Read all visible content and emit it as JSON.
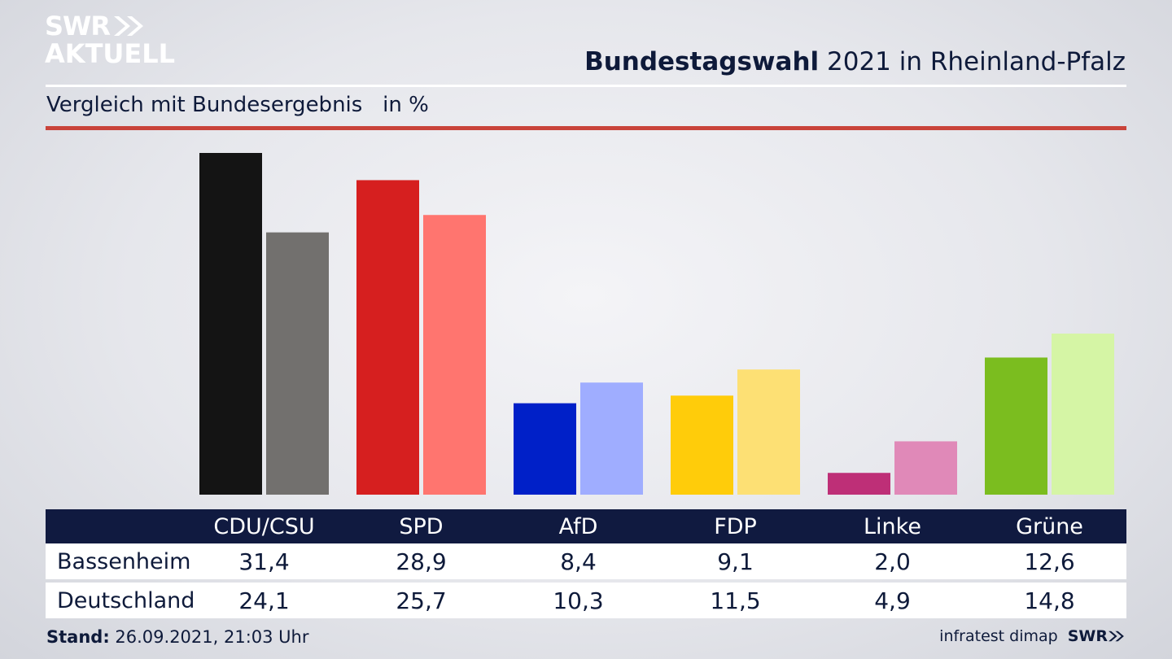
{
  "logo": {
    "line1": "SWR",
    "line2": "AKTUELL"
  },
  "header": {
    "title_bold": "Bundestagswahl",
    "title_rest": " 2021 in Rheinland-Pfalz"
  },
  "subtitle": "Vergleich mit Bundesergebnis   in %",
  "footer": {
    "stand_label": "Stand:",
    "stand_value": " 26.09.2021, 21:03 Uhr",
    "source": "infratest dimap",
    "brand": "SWR"
  },
  "colors": {
    "navy": "#101a40",
    "accent_red": "#c9433a"
  },
  "chart_data": {
    "type": "bar",
    "categories": [
      "CDU/CSU",
      "SPD",
      "AfD",
      "FDP",
      "Linke",
      "Grüne"
    ],
    "series": [
      {
        "name": "Bassenheim",
        "values": [
          31.4,
          28.9,
          8.4,
          9.1,
          2.0,
          12.6
        ],
        "colors": [
          "#141414",
          "#d61f1f",
          "#0020c8",
          "#ffcc0a",
          "#be2f77",
          "#7bbd1f"
        ]
      },
      {
        "name": "Deutschland",
        "values": [
          24.1,
          25.7,
          10.3,
          11.5,
          4.9,
          14.8
        ],
        "colors": [
          "#72706e",
          "#ff756f",
          "#9fadff",
          "#fde074",
          "#e089b8",
          "#d5f5a5"
        ]
      }
    ],
    "labels": {
      "Bassenheim": [
        "31,4",
        "28,9",
        "8,4",
        "9,1",
        "2,0",
        "12,6"
      ],
      "Deutschland": [
        "24,1",
        "25,7",
        "10,3",
        "11,5",
        "4,9",
        "14,8"
      ]
    },
    "unit": "in %",
    "ylim": [
      0,
      31.4
    ],
    "grid": false
  }
}
